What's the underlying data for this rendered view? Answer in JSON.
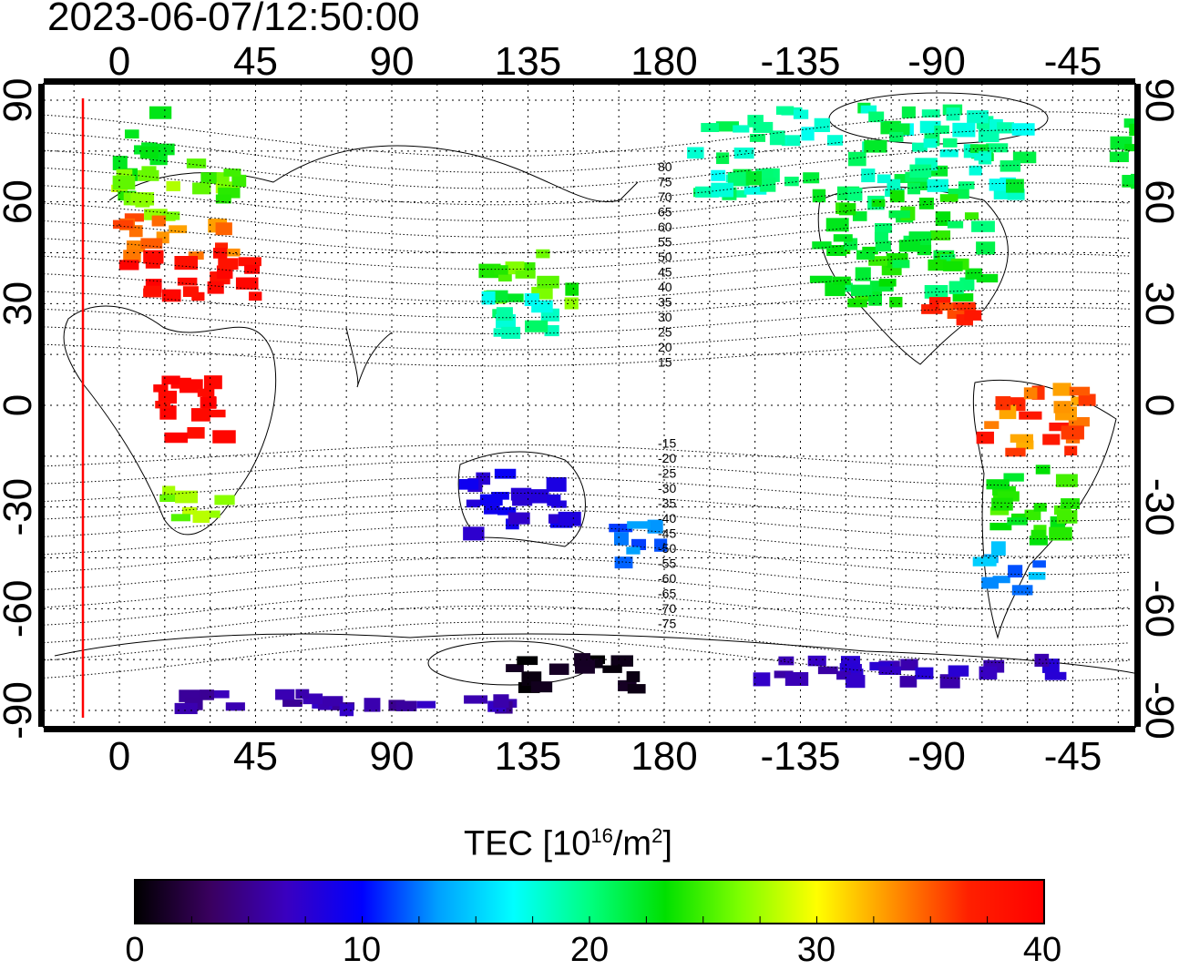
{
  "timestamp": "2023-06-07/12:50:00",
  "map": {
    "top_longitude_labels": [
      "0",
      "45",
      "90",
      "135",
      "180",
      "-135",
      "-90",
      "-45"
    ],
    "bottom_longitude_labels": [
      "0",
      "45",
      "90",
      "135",
      "180",
      "-135",
      "-90",
      "-45"
    ],
    "left_latitude_labels": [
      "90",
      "60",
      "30",
      "0",
      "-30",
      "-60",
      "-90"
    ],
    "right_latitude_labels": [
      "90",
      "60",
      "30",
      "0",
      "-30",
      "-60",
      "-90"
    ],
    "magnetic_latitude_labels": [
      "80",
      "75",
      "70",
      "65",
      "60",
      "55",
      "50",
      "45",
      "40",
      "35",
      "30",
      "25",
      "20",
      "15",
      "-15",
      "-20",
      "-25",
      "-30",
      "-35",
      "-40",
      "-45",
      "-50",
      "-55",
      "-60",
      "-65",
      "-70",
      "-75"
    ],
    "terminator_color": "#ff0000"
  },
  "colorbar": {
    "title_main": "TEC  [10",
    "title_exp": "16",
    "title_unit": "/m",
    "title_unit_exp": "2",
    "title_end": "]",
    "min": 0,
    "max": 40,
    "tick_labels": [
      "0",
      "10",
      "20",
      "30",
      "40"
    ],
    "colormap_stops": [
      "#000000",
      "#3a0060",
      "#3a00c0",
      "#0000ff",
      "#00a0ff",
      "#00ffff",
      "#00ff80",
      "#00e000",
      "#80ff00",
      "#ffff00",
      "#ff9000",
      "#ff2000",
      "#ff0000"
    ]
  }
}
